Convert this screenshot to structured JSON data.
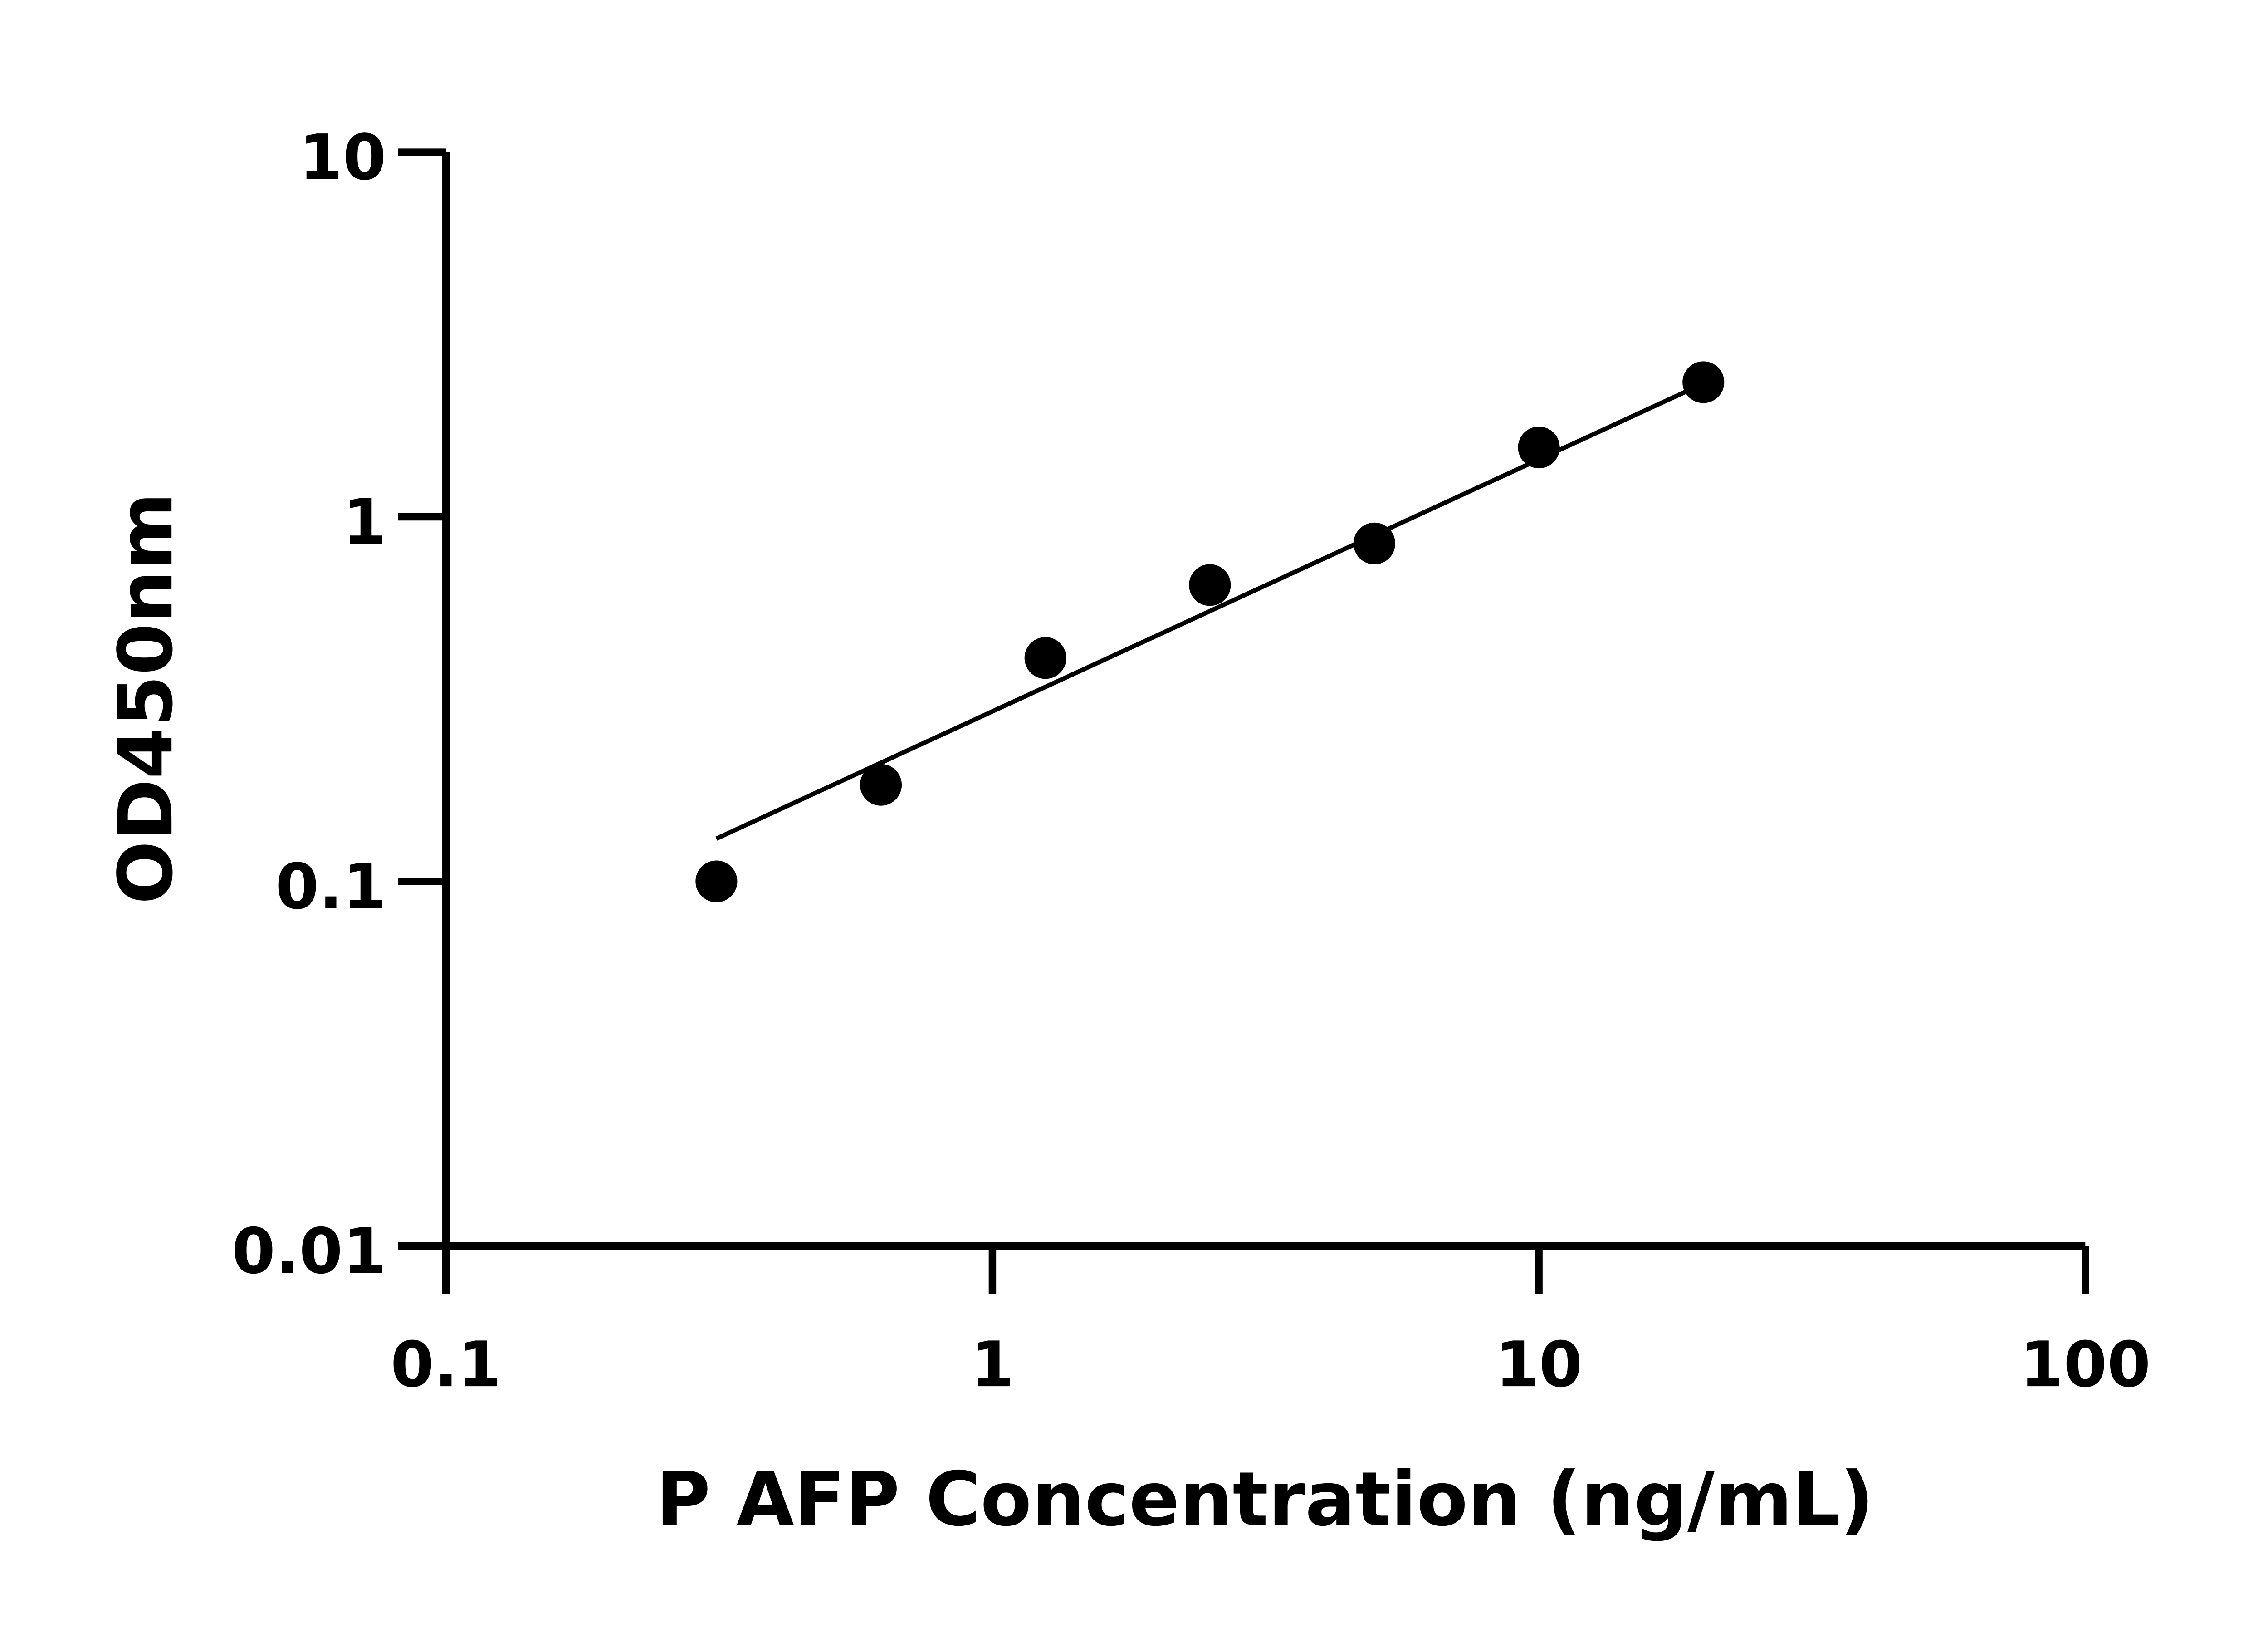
{
  "chart_data": {
    "type": "scatter",
    "title": "",
    "xlabel": "P AFP Concentration (ng/mL)",
    "ylabel": "OD450nm",
    "x_scale": "log",
    "y_scale": "log",
    "xlim": [
      0.1,
      100
    ],
    "ylim": [
      0.01,
      10
    ],
    "x_ticks": [
      "0.1",
      "1",
      "10",
      "100"
    ],
    "y_ticks": [
      "0.01",
      "0.1",
      "1",
      "10"
    ],
    "grid": false,
    "legend": "none",
    "points": {
      "x": [
        0.3125,
        0.625,
        1.25,
        2.5,
        5,
        10,
        20
      ],
      "y": [
        0.1,
        0.184,
        0.41,
        0.65,
        0.845,
        1.55,
        2.34
      ]
    },
    "fit_line": {
      "x": [
        0.3125,
        20
      ],
      "y": [
        0.131,
        2.32
      ]
    },
    "colors": {
      "marker": "#000000",
      "line": "#000000",
      "axis": "#000000"
    }
  }
}
